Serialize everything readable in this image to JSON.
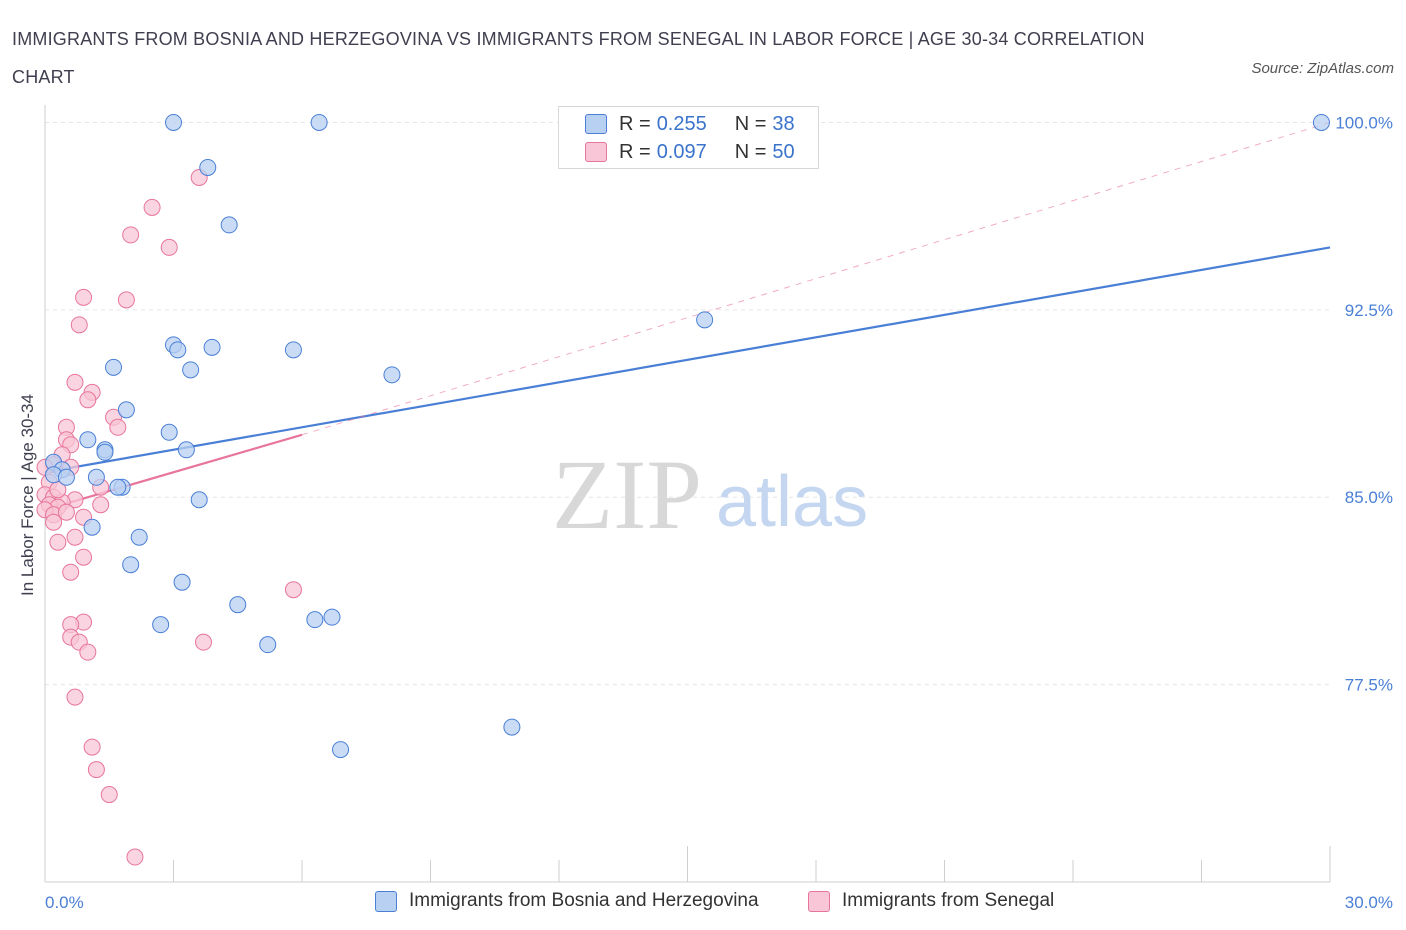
{
  "chart_data": {
    "type": "scatter",
    "title": "IMMIGRANTS FROM BOSNIA AND HERZEGOVINA VS IMMIGRANTS FROM SENEGAL IN LABOR FORCE | AGE 30-34 CORRELATION CHART",
    "source": "Source: ZipAtlas.com",
    "ylabel": "In Labor Force | Age 30-34",
    "xlabel": "",
    "x_tick_labels": [
      "0.0%",
      "30.0%"
    ],
    "y_tick_labels": [
      "100.0%",
      "92.5%",
      "85.0%",
      "77.5%"
    ],
    "y_ticks": [
      100.0,
      92.5,
      85.0,
      77.5
    ],
    "xlim": [
      0,
      30
    ],
    "ylim": [
      69.6,
      100.7
    ],
    "grid": true,
    "watermark": {
      "zip": "ZIP",
      "atlas": "atlas"
    },
    "legend": [
      {
        "r_label": "R = ",
        "r_value": "0.255",
        "n_label": "N = ",
        "n_value": "38"
      },
      {
        "r_label": "R = ",
        "r_value": "0.097",
        "n_label": "N = ",
        "n_value": "50"
      }
    ],
    "series": [
      {
        "name": "Immigrants from Bosnia and Herzegovina",
        "color": "#4a7fd6",
        "fill": "#b8d0f2",
        "trend": {
          "x0": 0.0,
          "y0": 86.0,
          "x1": 30.0,
          "y1": 95.0,
          "dashed_extension": false
        },
        "points": [
          [
            3.0,
            100.0
          ],
          [
            6.4,
            100.0
          ],
          [
            29.8,
            100.0
          ],
          [
            3.8,
            98.2
          ],
          [
            4.3,
            95.9
          ],
          [
            15.4,
            92.1
          ],
          [
            3.0,
            91.1
          ],
          [
            3.1,
            90.9
          ],
          [
            3.9,
            91.0
          ],
          [
            5.8,
            90.9
          ],
          [
            1.6,
            90.2
          ],
          [
            3.4,
            90.1
          ],
          [
            8.1,
            89.9
          ],
          [
            1.9,
            88.5
          ],
          [
            2.9,
            87.6
          ],
          [
            1.0,
            87.3
          ],
          [
            1.4,
            86.9
          ],
          [
            3.3,
            86.9
          ],
          [
            1.4,
            86.8
          ],
          [
            0.2,
            86.4
          ],
          [
            0.4,
            86.1
          ],
          [
            0.2,
            85.9
          ],
          [
            0.5,
            85.8
          ],
          [
            1.2,
            85.8
          ],
          [
            1.8,
            85.4
          ],
          [
            1.7,
            85.4
          ],
          [
            3.6,
            84.9
          ],
          [
            1.1,
            83.8
          ],
          [
            2.2,
            83.4
          ],
          [
            2.0,
            82.3
          ],
          [
            3.2,
            81.6
          ],
          [
            4.5,
            80.7
          ],
          [
            2.7,
            79.9
          ],
          [
            6.3,
            80.1
          ],
          [
            6.7,
            80.2
          ],
          [
            5.2,
            79.1
          ],
          [
            10.9,
            75.8
          ],
          [
            6.9,
            74.9
          ]
        ]
      },
      {
        "name": "Immigrants from Senegal",
        "color": "#e8759b",
        "fill": "#f8c6d6",
        "trend": {
          "x0": 0.0,
          "y0": 84.5,
          "x1": 6.0,
          "y1": 87.5,
          "dashed_extension": true,
          "ext_x1": 30.0,
          "ext_y1": 100.0
        },
        "points": [
          [
            3.6,
            97.8
          ],
          [
            2.5,
            96.6
          ],
          [
            2.0,
            95.5
          ],
          [
            2.9,
            95.0
          ],
          [
            0.9,
            93.0
          ],
          [
            1.9,
            92.9
          ],
          [
            0.8,
            91.9
          ],
          [
            0.7,
            89.6
          ],
          [
            1.1,
            89.2
          ],
          [
            1.0,
            88.9
          ],
          [
            1.6,
            88.2
          ],
          [
            1.7,
            87.8
          ],
          [
            0.5,
            87.8
          ],
          [
            0.5,
            87.3
          ],
          [
            0.6,
            87.1
          ],
          [
            0.4,
            86.7
          ],
          [
            0.2,
            86.3
          ],
          [
            0.6,
            86.2
          ],
          [
            0.0,
            86.2
          ],
          [
            0.1,
            85.6
          ],
          [
            1.3,
            85.4
          ],
          [
            0.0,
            85.1
          ],
          [
            0.2,
            85.0
          ],
          [
            0.7,
            84.9
          ],
          [
            0.4,
            84.8
          ],
          [
            0.1,
            84.7
          ],
          [
            0.3,
            84.6
          ],
          [
            1.3,
            84.7
          ],
          [
            0.0,
            84.5
          ],
          [
            0.2,
            84.3
          ],
          [
            0.9,
            84.2
          ],
          [
            0.2,
            84.0
          ],
          [
            0.7,
            83.4
          ],
          [
            0.3,
            83.2
          ],
          [
            0.9,
            82.6
          ],
          [
            0.6,
            82.0
          ],
          [
            5.8,
            81.3
          ],
          [
            0.9,
            80.0
          ],
          [
            0.6,
            79.9
          ],
          [
            0.6,
            79.4
          ],
          [
            0.8,
            79.2
          ],
          [
            3.7,
            79.2
          ],
          [
            1.0,
            78.8
          ],
          [
            0.7,
            77.0
          ],
          [
            1.1,
            75.0
          ],
          [
            1.2,
            74.1
          ],
          [
            1.5,
            73.1
          ],
          [
            2.1,
            70.6
          ],
          [
            0.3,
            85.3
          ],
          [
            0.5,
            84.4
          ]
        ]
      }
    ]
  }
}
